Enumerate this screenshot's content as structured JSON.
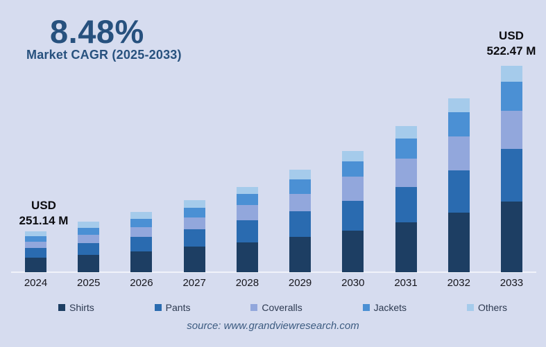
{
  "header": {
    "cagr_value": "8.48%",
    "cagr_label": "Market CAGR (2025-2033)"
  },
  "annotations": {
    "start": {
      "year": "2024",
      "line1": "USD",
      "line2": "251.14 M"
    },
    "end": {
      "year": "2033",
      "line1": "USD",
      "line2": "522.47 M"
    }
  },
  "source": "source: www.grandviewresearch.com",
  "colors": {
    "background": "#d6dcef",
    "title_text": "#27517e",
    "annotation_text": "#0c0c10",
    "axis_line": "#f0f3fa",
    "year_label_text": "#15151c",
    "legend_text": "#2c3950",
    "source_text": "#3c5b80"
  },
  "chart_data": {
    "type": "bar",
    "stacked": true,
    "title": "8.48%",
    "subtitle": "Market CAGR (2025-2033)",
    "categories": [
      "2024",
      "2025",
      "2026",
      "2027",
      "2028",
      "2029",
      "2030",
      "2031",
      "2032",
      "2033"
    ],
    "totals_labeled": {
      "2024": "USD 251.14 M",
      "2033": "USD 522.47 M"
    },
    "value_units": "relative_px_height",
    "series": [
      {
        "name": "Shirts",
        "color": "#1d3e63",
        "values": [
          21,
          25,
          30,
          37,
          43,
          51,
          60,
          72,
          86,
          102
        ]
      },
      {
        "name": "Pants",
        "color": "#2a6bb0",
        "values": [
          14,
          17,
          21,
          25,
          32,
          37,
          43,
          51,
          61,
          76
        ]
      },
      {
        "name": "Coveralls",
        "color": "#92a7dc",
        "values": [
          9,
          12,
          14,
          17,
          22,
          25,
          35,
          41,
          49,
          55
        ]
      },
      {
        "name": "Jackets",
        "color": "#4b90d4",
        "values": [
          8,
          10,
          12,
          14,
          16,
          21,
          22,
          29,
          35,
          42
        ]
      },
      {
        "name": "Others",
        "color": "#a5cbeb",
        "values": [
          7,
          9,
          10,
          11,
          10,
          14,
          15,
          18,
          20,
          23
        ]
      }
    ],
    "legend_position": "bottom",
    "grid": false,
    "xlabel": "",
    "ylabel": ""
  }
}
